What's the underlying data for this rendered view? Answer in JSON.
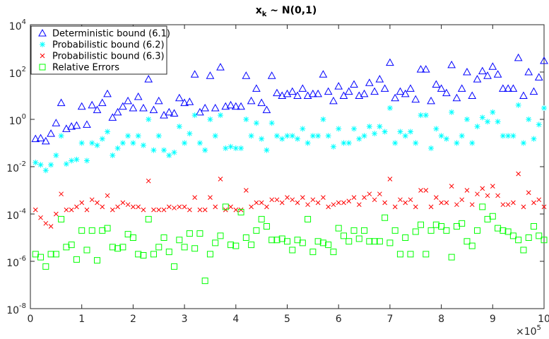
{
  "chart_data": {
    "type": "scatter",
    "title": "x",
    "title_subscript": "k",
    "title_rest": " ~ N(0,1)",
    "x_multiplier": "×10",
    "x_multiplier_exponent": "5",
    "xlim": [
      0,
      10
    ],
    "xticks": [
      0,
      1,
      2,
      3,
      4,
      5,
      6,
      7,
      8,
      9,
      10
    ],
    "ylim": [
      1e-08,
      10000
    ],
    "log_y": true,
    "yticks": [
      {
        "value": 1e-08,
        "label": "10",
        "exponent": "-8"
      },
      {
        "value": 1e-06,
        "label": "10",
        "exponent": "-6"
      },
      {
        "value": 0.0001,
        "label": "10",
        "exponent": "-4"
      },
      {
        "value": 0.01,
        "label": "10",
        "exponent": "-2"
      },
      {
        "value": 1,
        "label": "10",
        "exponent": "0"
      },
      {
        "value": 100,
        "label": "10",
        "exponent": "2"
      },
      {
        "value": 10000,
        "label": "10",
        "exponent": "4"
      }
    ],
    "legend": "upper-left",
    "x": [
      0.1,
      0.2,
      0.3,
      0.4,
      0.5,
      0.6,
      0.7,
      0.8,
      0.9,
      1.0,
      1.1,
      1.2,
      1.3,
      1.4,
      1.5,
      1.6,
      1.7,
      1.8,
      1.9,
      2.0,
      2.1,
      2.2,
      2.3,
      2.4,
      2.5,
      2.6,
      2.7,
      2.8,
      2.9,
      3.0,
      3.1,
      3.2,
      3.3,
      3.4,
      3.5,
      3.6,
      3.7,
      3.8,
      3.9,
      4.0,
      4.1,
      4.2,
      4.3,
      4.4,
      4.5,
      4.6,
      4.7,
      4.8,
      4.9,
      5.0,
      5.1,
      5.2,
      5.3,
      5.4,
      5.5,
      5.6,
      5.7,
      5.8,
      5.9,
      6.0,
      6.1,
      6.2,
      6.3,
      6.4,
      6.5,
      6.6,
      6.7,
      6.8,
      6.9,
      7.0,
      7.1,
      7.2,
      7.3,
      7.4,
      7.5,
      7.6,
      7.7,
      7.8,
      7.9,
      8.0,
      8.1,
      8.2,
      8.3,
      8.4,
      8.5,
      8.6,
      8.7,
      8.8,
      8.9,
      9.0,
      9.1,
      9.2,
      9.3,
      9.4,
      9.5,
      9.6,
      9.7,
      9.8,
      9.9,
      10.0
    ],
    "series": [
      {
        "name": "Deterministic bound (6.1)",
        "marker": "triangle",
        "color": "#0000ff",
        "values": [
          0.15,
          0.16,
          0.12,
          0.25,
          0.7,
          5,
          0.4,
          0.5,
          0.55,
          3.5,
          0.6,
          4,
          2.5,
          5,
          12,
          1.2,
          2,
          3.5,
          6,
          3,
          9,
          3,
          50,
          2.5,
          6,
          1.5,
          2,
          1.8,
          8,
          5,
          5.5,
          80,
          2,
          3,
          70,
          3,
          160,
          3.5,
          4,
          3.5,
          3.5,
          70,
          6,
          20,
          5,
          2.5,
          70,
          13,
          10,
          12,
          15,
          10,
          20,
          10,
          12,
          12,
          80,
          15,
          6,
          25,
          10,
          15,
          30,
          10,
          12,
          35,
          15,
          50,
          20,
          250,
          8,
          15,
          12,
          20,
          7,
          130,
          130,
          6,
          30,
          20,
          13,
          200,
          8,
          20,
          100,
          10,
          50,
          110,
          70,
          170,
          80,
          20,
          20,
          20,
          400,
          10,
          100,
          15,
          60,
          300
        ]
      },
      {
        "name": "Probabilistic bound (6.2)",
        "marker": "asterisk",
        "color": "#00ffff",
        "values": [
          0.015,
          0.012,
          0.007,
          0.012,
          0.03,
          0.2,
          0.013,
          0.018,
          0.02,
          0.1,
          0.018,
          0.1,
          0.08,
          0.15,
          0.3,
          0.03,
          0.06,
          0.1,
          0.2,
          0.1,
          0.2,
          0.08,
          1,
          0.05,
          0.2,
          0.05,
          0.03,
          0.04,
          0.5,
          0.1,
          0.25,
          1.5,
          0.1,
          0.05,
          1,
          0.2,
          1.5,
          0.06,
          0.07,
          0.06,
          0.06,
          1,
          0.2,
          0.7,
          0.15,
          0.05,
          0.7,
          0.2,
          0.15,
          0.2,
          0.2,
          0.15,
          0.4,
          0.1,
          0.2,
          0.2,
          1,
          0.2,
          0.07,
          0.4,
          0.1,
          0.1,
          0.4,
          0.15,
          0.2,
          0.5,
          0.25,
          0.5,
          0.3,
          3,
          0.1,
          0.3,
          0.2,
          0.3,
          0.1,
          1.5,
          1.5,
          0.06,
          0.4,
          0.2,
          0.15,
          2,
          0.1,
          0.2,
          1,
          0.1,
          0.5,
          1.2,
          0.8,
          2,
          0.8,
          0.2,
          0.2,
          0.2,
          4,
          0.1,
          1,
          0.15,
          0.6,
          3
        ]
      },
      {
        "name": "Probabilistic bound (6.3)",
        "marker": "cross",
        "color": "#ff0000",
        "values": [
          0.00015,
          7e-05,
          4e-05,
          3e-05,
          0.0001,
          0.0007,
          0.00015,
          0.00015,
          0.0002,
          0.0003,
          0.00015,
          0.0004,
          0.0003,
          0.0002,
          0.0006,
          0.00015,
          0.0002,
          0.0003,
          0.00025,
          0.0002,
          0.0002,
          0.00015,
          0.0025,
          0.00015,
          0.00015,
          0.00015,
          0.0002,
          0.00018,
          0.0002,
          0.0002,
          0.00015,
          0.0005,
          0.00015,
          0.00015,
          0.0005,
          0.0002,
          0.003,
          0.00015,
          0.0002,
          0.00015,
          0.00015,
          0.001,
          0.0002,
          0.0003,
          0.0003,
          0.0002,
          0.0004,
          0.0004,
          0.0003,
          0.0005,
          0.0004,
          0.0003,
          0.0005,
          0.00025,
          0.0004,
          0.0003,
          0.0005,
          0.0002,
          0.00025,
          0.0003,
          0.0003,
          0.00035,
          0.0005,
          0.00025,
          0.0005,
          0.0007,
          0.0004,
          0.0007,
          0.0003,
          0.003,
          0.0002,
          0.0004,
          0.0003,
          0.0004,
          0.0002,
          0.001,
          0.001,
          0.0002,
          0.0005,
          0.0003,
          0.0003,
          0.0015,
          0.00025,
          0.0004,
          0.001,
          0.00025,
          0.0007,
          0.0012,
          0.0006,
          0.0015,
          0.0006,
          0.00025,
          0.00025,
          0.0003,
          0.005,
          0.0002,
          0.0008,
          0.0003,
          0.0004,
          0.0002
        ]
      },
      {
        "name": "Relative Errors",
        "marker": "square",
        "color": "#00ff00",
        "values": [
          2e-06,
          1.5e-06,
          6e-07,
          2e-06,
          2e-06,
          6e-05,
          4e-06,
          5e-06,
          1.2e-06,
          2e-05,
          3e-06,
          2e-05,
          1.1e-06,
          2e-05,
          2.5e-05,
          4e-06,
          3.5e-06,
          4e-06,
          1.4e-05,
          1e-05,
          2e-06,
          1.8e-06,
          6e-05,
          2e-06,
          4e-06,
          1e-05,
          2.5e-06,
          6e-07,
          8e-06,
          4e-06,
          1.5e-05,
          3.5e-06,
          1.5e-05,
          1.5e-07,
          2e-06,
          6e-06,
          1.2e-05,
          0.0002,
          5e-06,
          4.5e-06,
          0.00012,
          1e-05,
          5e-06,
          2e-05,
          6e-05,
          3e-05,
          8e-06,
          8e-06,
          9e-06,
          7e-06,
          3e-06,
          8e-06,
          6e-06,
          6e-05,
          2.5e-06,
          7e-06,
          6e-06,
          5e-06,
          2.5e-06,
          2.5e-05,
          1.2e-05,
          7e-06,
          2e-05,
          9e-06,
          2e-05,
          7e-06,
          7e-06,
          7e-06,
          7e-05,
          6e-06,
          2e-05,
          2e-06,
          1e-05,
          2e-06,
          1.8e-05,
          3.5e-05,
          2e-06,
          2e-05,
          3.5e-05,
          3e-05,
          2e-05,
          1.5e-06,
          3e-05,
          4e-05,
          7e-06,
          4.5e-06,
          2e-05,
          0.0002,
          6e-05,
          8e-05,
          2.5e-05,
          2e-05,
          1.8e-05,
          1.2e-05,
          8e-06,
          3e-06,
          1e-05,
          3e-05,
          1.2e-05,
          8e-06
        ]
      }
    ]
  }
}
